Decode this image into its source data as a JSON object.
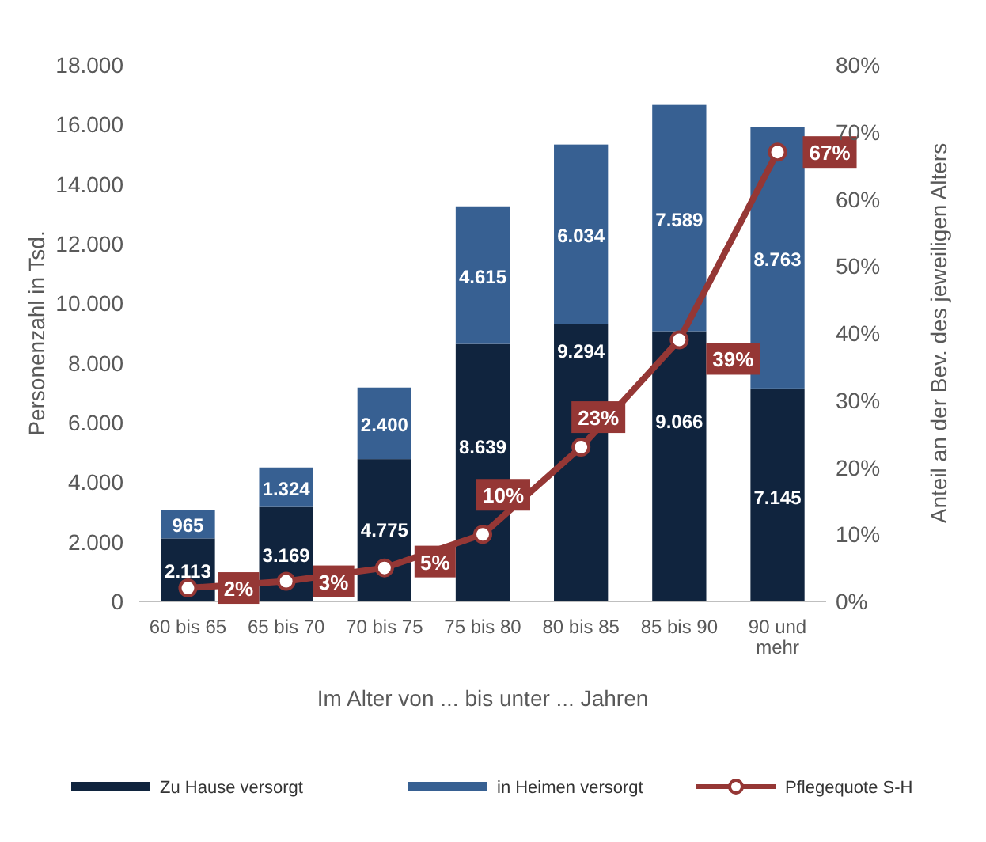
{
  "chart_data": {
    "type": "bar",
    "stacked": true,
    "xlabel": "Im Alter von ... bis unter ... Jahren",
    "ylabel": "Personenzahl in Tsd.",
    "y2label": "Anteil an der Bev. des jeweiligen Alters",
    "categories": [
      "60 bis 65",
      "65 bis 70",
      "70 bis 75",
      "75 bis 80",
      "80 bis 85",
      "85 bis 90",
      "90 und mehr"
    ],
    "series": [
      {
        "name": "Zu Hause versorgt",
        "color": "#10243e",
        "values": [
          2113,
          3169,
          4775,
          8639,
          9294,
          9066,
          7145
        ],
        "value_labels": [
          "2.113",
          "3.169",
          "4.775",
          "8.639",
          "9.294",
          "9.066",
          "7.145"
        ]
      },
      {
        "name": "in Heimen versorgt",
        "color": "#376092",
        "values": [
          965,
          1324,
          2400,
          4615,
          6034,
          7589,
          8763
        ],
        "value_labels": [
          "965",
          "1.324",
          "2.400",
          "4.615",
          "6.034",
          "7.589",
          "8.763"
        ]
      },
      {
        "name": "Pflegequote S-H",
        "type": "line",
        "axis": "y2",
        "color": "#953735",
        "marker": "circle",
        "line_style": "solid",
        "values": [
          2,
          3,
          5,
          10,
          23,
          39,
          67
        ],
        "value_labels": [
          "2%",
          "3%",
          "5%",
          "10%",
          "23%",
          "39%",
          "67%"
        ]
      }
    ],
    "ylim": [
      0,
      18000
    ],
    "yticks": [
      {
        "value": 0,
        "label": "0"
      },
      {
        "value": 2000,
        "label": "2.000"
      },
      {
        "value": 4000,
        "label": "4.000"
      },
      {
        "value": 6000,
        "label": "6.000"
      },
      {
        "value": 8000,
        "label": "8.000"
      },
      {
        "value": 10000,
        "label": "10.000"
      },
      {
        "value": 12000,
        "label": "12.000"
      },
      {
        "value": 14000,
        "label": "14.000"
      },
      {
        "value": 16000,
        "label": "16.000"
      },
      {
        "value": 18000,
        "label": "18.000"
      }
    ],
    "y2lim": [
      0,
      80
    ],
    "y2ticks": [
      {
        "value": 0,
        "label": "0%"
      },
      {
        "value": 10,
        "label": "10%"
      },
      {
        "value": 20,
        "label": "20%"
      },
      {
        "value": 30,
        "label": "30%"
      },
      {
        "value": 40,
        "label": "40%"
      },
      {
        "value": 50,
        "label": "50%"
      },
      {
        "value": 60,
        "label": "60%"
      },
      {
        "value": 70,
        "label": "70%"
      },
      {
        "value": 80,
        "label": "80%"
      }
    ],
    "grid": false,
    "legend": "bottom"
  }
}
